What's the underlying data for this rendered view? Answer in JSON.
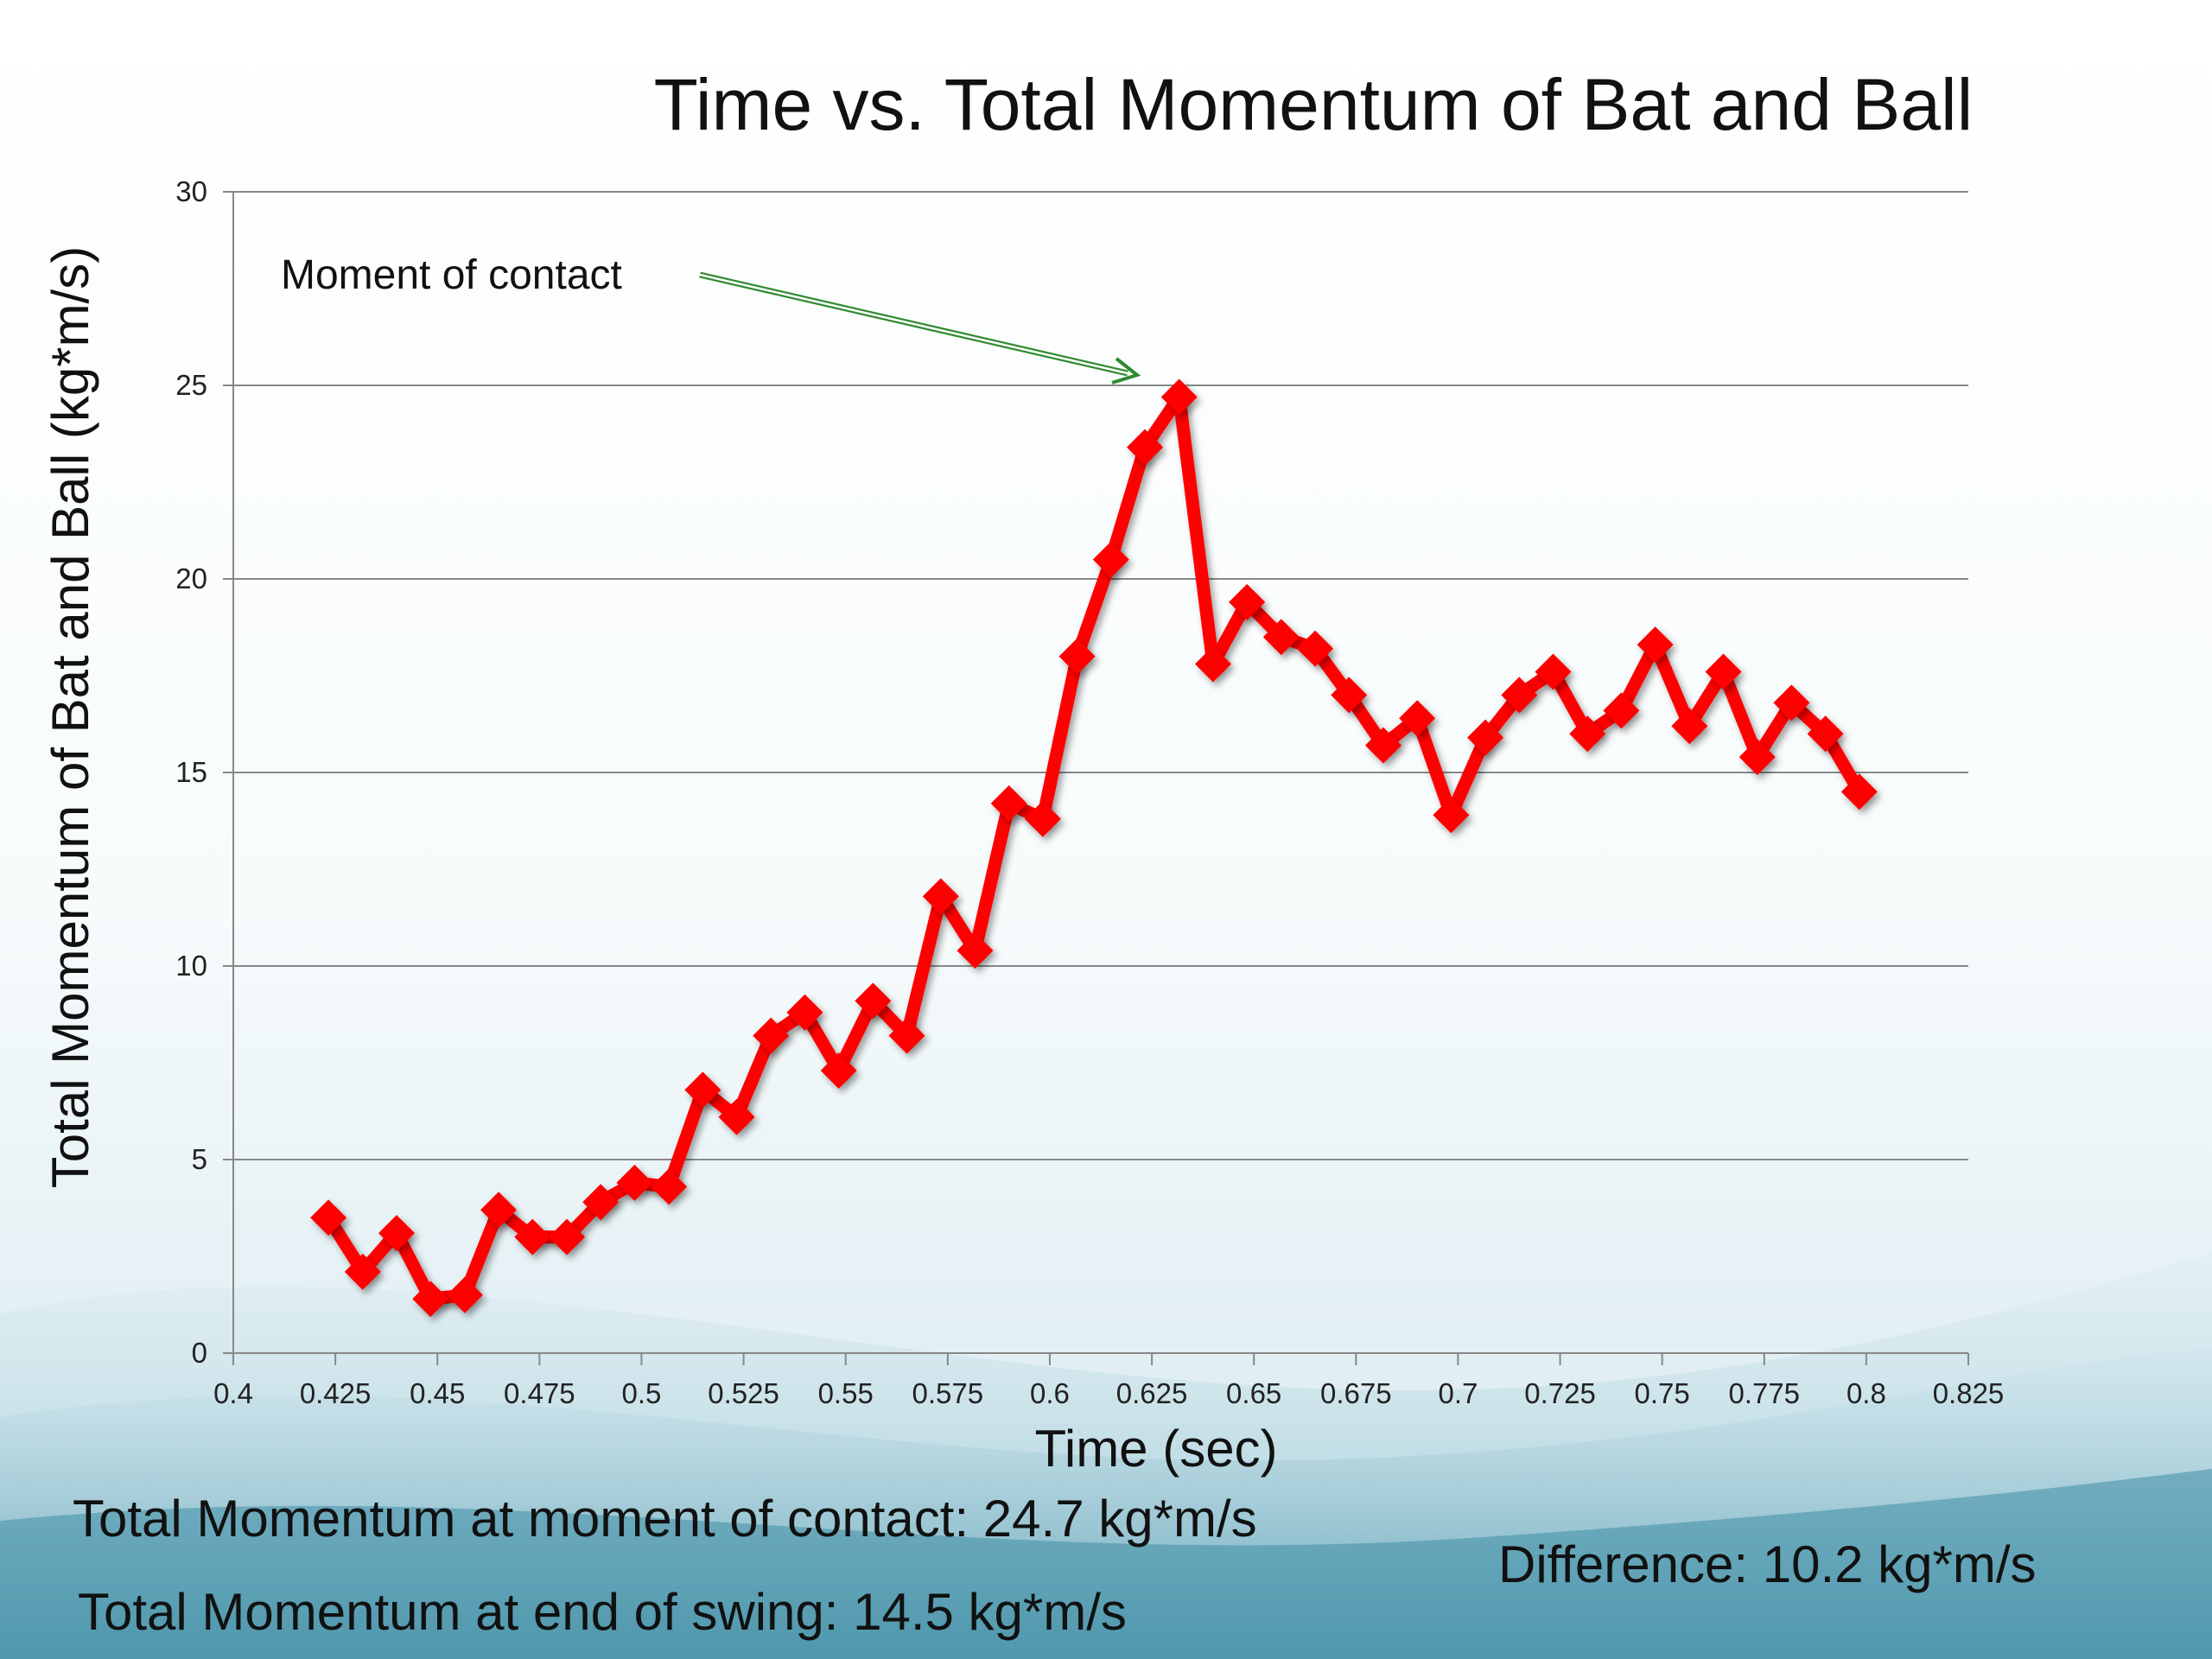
{
  "colors": {
    "series": "#ff0000",
    "grid": "#888888",
    "annotation_arrow": "#2e8b2e",
    "background_wave": "#5aa8bd"
  },
  "chart_data": {
    "type": "line",
    "title": "Time vs. Total Momentum of Bat and Ball",
    "xlabel": "Time (sec)",
    "ylabel": "Total Momentum of Bat and Ball (kg*m/s)",
    "xlim": [
      0.4,
      0.825
    ],
    "ylim": [
      0,
      30
    ],
    "x_ticks": [
      0.4,
      0.425,
      0.45,
      0.475,
      0.5,
      0.525,
      0.55,
      0.575,
      0.6,
      0.625,
      0.65,
      0.675,
      0.7,
      0.725,
      0.75,
      0.775,
      0.8,
      0.825
    ],
    "x_tick_labels": [
      "0.4",
      "0.425",
      "0.45",
      "0.475",
      "0.5",
      "0.525",
      "0.55",
      "0.575",
      "0.6",
      "0.625",
      "0.65",
      "0.675",
      "0.7",
      "0.725",
      "0.75",
      "0.775",
      "0.8",
      "0.825"
    ],
    "y_ticks": [
      0,
      5,
      10,
      15,
      20,
      25,
      30
    ],
    "y_tick_labels": [
      "0",
      "5",
      "10",
      "15",
      "20",
      "25",
      "30"
    ],
    "grid": "horizontal",
    "legend": "none",
    "marker": "diamond",
    "series": [
      {
        "x": [
          0.4233,
          0.4317,
          0.44,
          0.4483,
          0.4567,
          0.465,
          0.4733,
          0.4817,
          0.49,
          0.4983,
          0.5067,
          0.515,
          0.5233,
          0.5317,
          0.54,
          0.5483,
          0.5567,
          0.565,
          0.5733,
          0.5817,
          0.59,
          0.5983,
          0.6067,
          0.615,
          0.6233,
          0.6317,
          0.64,
          0.6483,
          0.6567,
          0.665,
          0.6733,
          0.6817,
          0.69,
          0.6983,
          0.7067,
          0.715,
          0.7233,
          0.7317,
          0.74,
          0.7483,
          0.7567,
          0.765,
          0.7733,
          0.7817,
          0.79,
          0.7983
        ],
        "values": [
          3.5,
          2.1,
          3.1,
          1.4,
          1.5,
          3.7,
          3.0,
          3.0,
          3.9,
          4.4,
          4.3,
          6.8,
          6.1,
          8.2,
          8.8,
          7.3,
          9.1,
          8.2,
          11.8,
          10.4,
          14.2,
          13.8,
          18.0,
          20.5,
          23.4,
          24.7,
          17.8,
          19.4,
          18.5,
          18.2,
          17.0,
          15.7,
          16.4,
          13.9,
          15.9,
          17.0,
          17.6,
          16.0,
          16.6,
          18.3,
          16.2,
          17.6,
          15.4,
          16.8,
          16.0,
          14.5
        ]
      }
    ],
    "annotations": [
      {
        "text": "Moment of contact",
        "points_to": [
          0.6317,
          24.7
        ]
      }
    ]
  },
  "notes": {
    "contact": "Total Momentum at moment of contact: 24.7 kg*m/s",
    "end": "Total Momentum at end of swing: 14.5 kg*m/s",
    "difference": "Difference: 10.2 kg*m/s"
  }
}
